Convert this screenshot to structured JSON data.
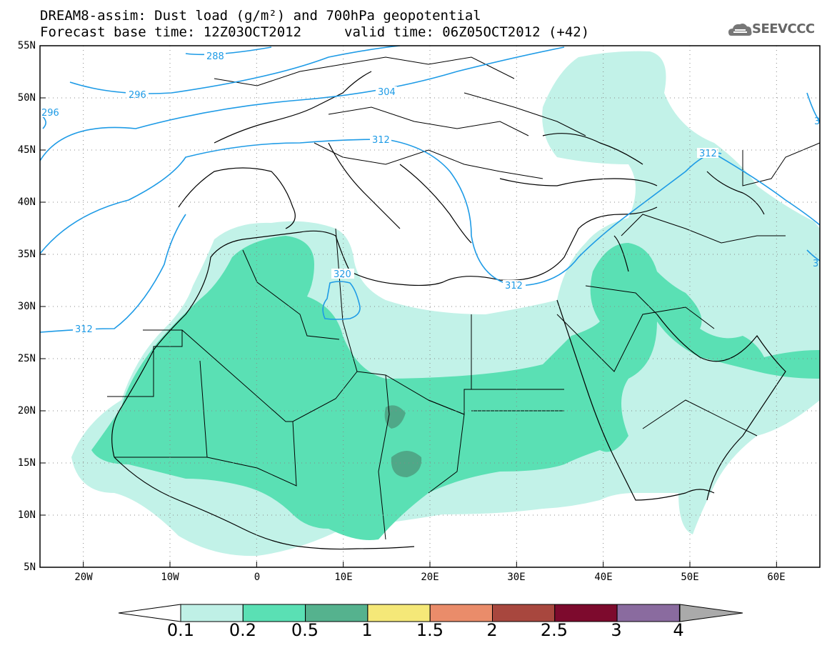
{
  "title": {
    "line1": "DREAM8-assim: Dust load (g/m²) and 700hPa geopotential",
    "line2": "Forecast base time: 12Z03OCT2012",
    "line3": "valid time: 06Z05OCT2012 (+42)"
  },
  "logo": {
    "text": "SEEVCCC",
    "icon": "cloud-icon"
  },
  "axes": {
    "lat_labels": [
      "55N",
      "50N",
      "45N",
      "40N",
      "35N",
      "30N",
      "25N",
      "20N",
      "15N",
      "10N",
      "5N"
    ],
    "lon_labels": [
      "20W",
      "10W",
      "0",
      "10E",
      "20E",
      "30E",
      "40E",
      "50E",
      "60E"
    ],
    "lat_range": [
      5,
      55
    ],
    "lon_range": [
      -25,
      65
    ],
    "grid": "dotted"
  },
  "contours": {
    "labels": [
      "288",
      "296",
      "296",
      "304",
      "312",
      "312",
      "312",
      "312",
      "320",
      "312",
      "3",
      "3"
    ]
  },
  "colorbar": {
    "ticks": [
      "0.1",
      "0.2",
      "0.5",
      "1",
      "1.5",
      "2",
      "2.5",
      "3",
      "4"
    ],
    "colors": [
      "#bff0e6",
      "#5ae0b4",
      "#55b28e",
      "#f5e878",
      "#ea8c6a",
      "#a8473e",
      "#7d0a2d",
      "#8a6b9f",
      "#aaaaaa"
    ]
  },
  "colors": {
    "contour": "#1e9be6",
    "light_dust": "#c2f2e8",
    "medium_dust": "#5ae0b4",
    "heavy_dust": "#4fa888"
  }
}
